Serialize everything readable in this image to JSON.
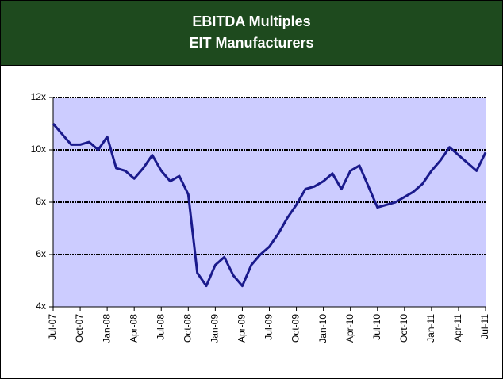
{
  "chart_data": {
    "type": "line",
    "title": "EBITDA Multiples",
    "subtitle": "EIT Manufacturers",
    "categories": [
      "Jul-07",
      null,
      null,
      "Oct-07",
      null,
      null,
      "Jan-08",
      null,
      null,
      "Apr-08",
      null,
      null,
      "Jul-08",
      null,
      null,
      "Oct-08",
      null,
      null,
      "Jan-09",
      null,
      null,
      "Apr-09",
      null,
      null,
      "Jul-09",
      null,
      null,
      "Oct-09",
      null,
      null,
      "Jan-10",
      null,
      null,
      "Apr-10",
      null,
      null,
      "Jul-10",
      null,
      null,
      "Oct-10",
      null,
      null,
      "Jan-11",
      null,
      null,
      "Apr-11",
      null,
      null,
      "Jul-11"
    ],
    "values": [
      11.0,
      10.6,
      10.2,
      10.2,
      10.3,
      10.0,
      10.5,
      9.3,
      9.2,
      8.9,
      9.3,
      9.8,
      9.2,
      8.8,
      9.0,
      8.3,
      5.3,
      4.8,
      5.6,
      5.9,
      5.2,
      4.8,
      5.6,
      6.0,
      6.3,
      6.8,
      7.4,
      7.9,
      8.5,
      8.6,
      8.8,
      9.1,
      8.5,
      9.2,
      9.4,
      8.6,
      7.8,
      7.9,
      8.0,
      8.2,
      8.4,
      8.7,
      9.2,
      9.6,
      10.1,
      9.8,
      9.5,
      9.2,
      9.9
    ],
    "color": "#1a1a8c",
    "ylim": [
      4,
      12
    ],
    "yticks": [
      {
        "value": 4,
        "label": "4x"
      },
      {
        "value": 6,
        "label": "6x"
      },
      {
        "value": 8,
        "label": "8x"
      },
      {
        "value": 10,
        "label": "10x"
      },
      {
        "value": 12,
        "label": "12x"
      }
    ],
    "grid": true
  }
}
